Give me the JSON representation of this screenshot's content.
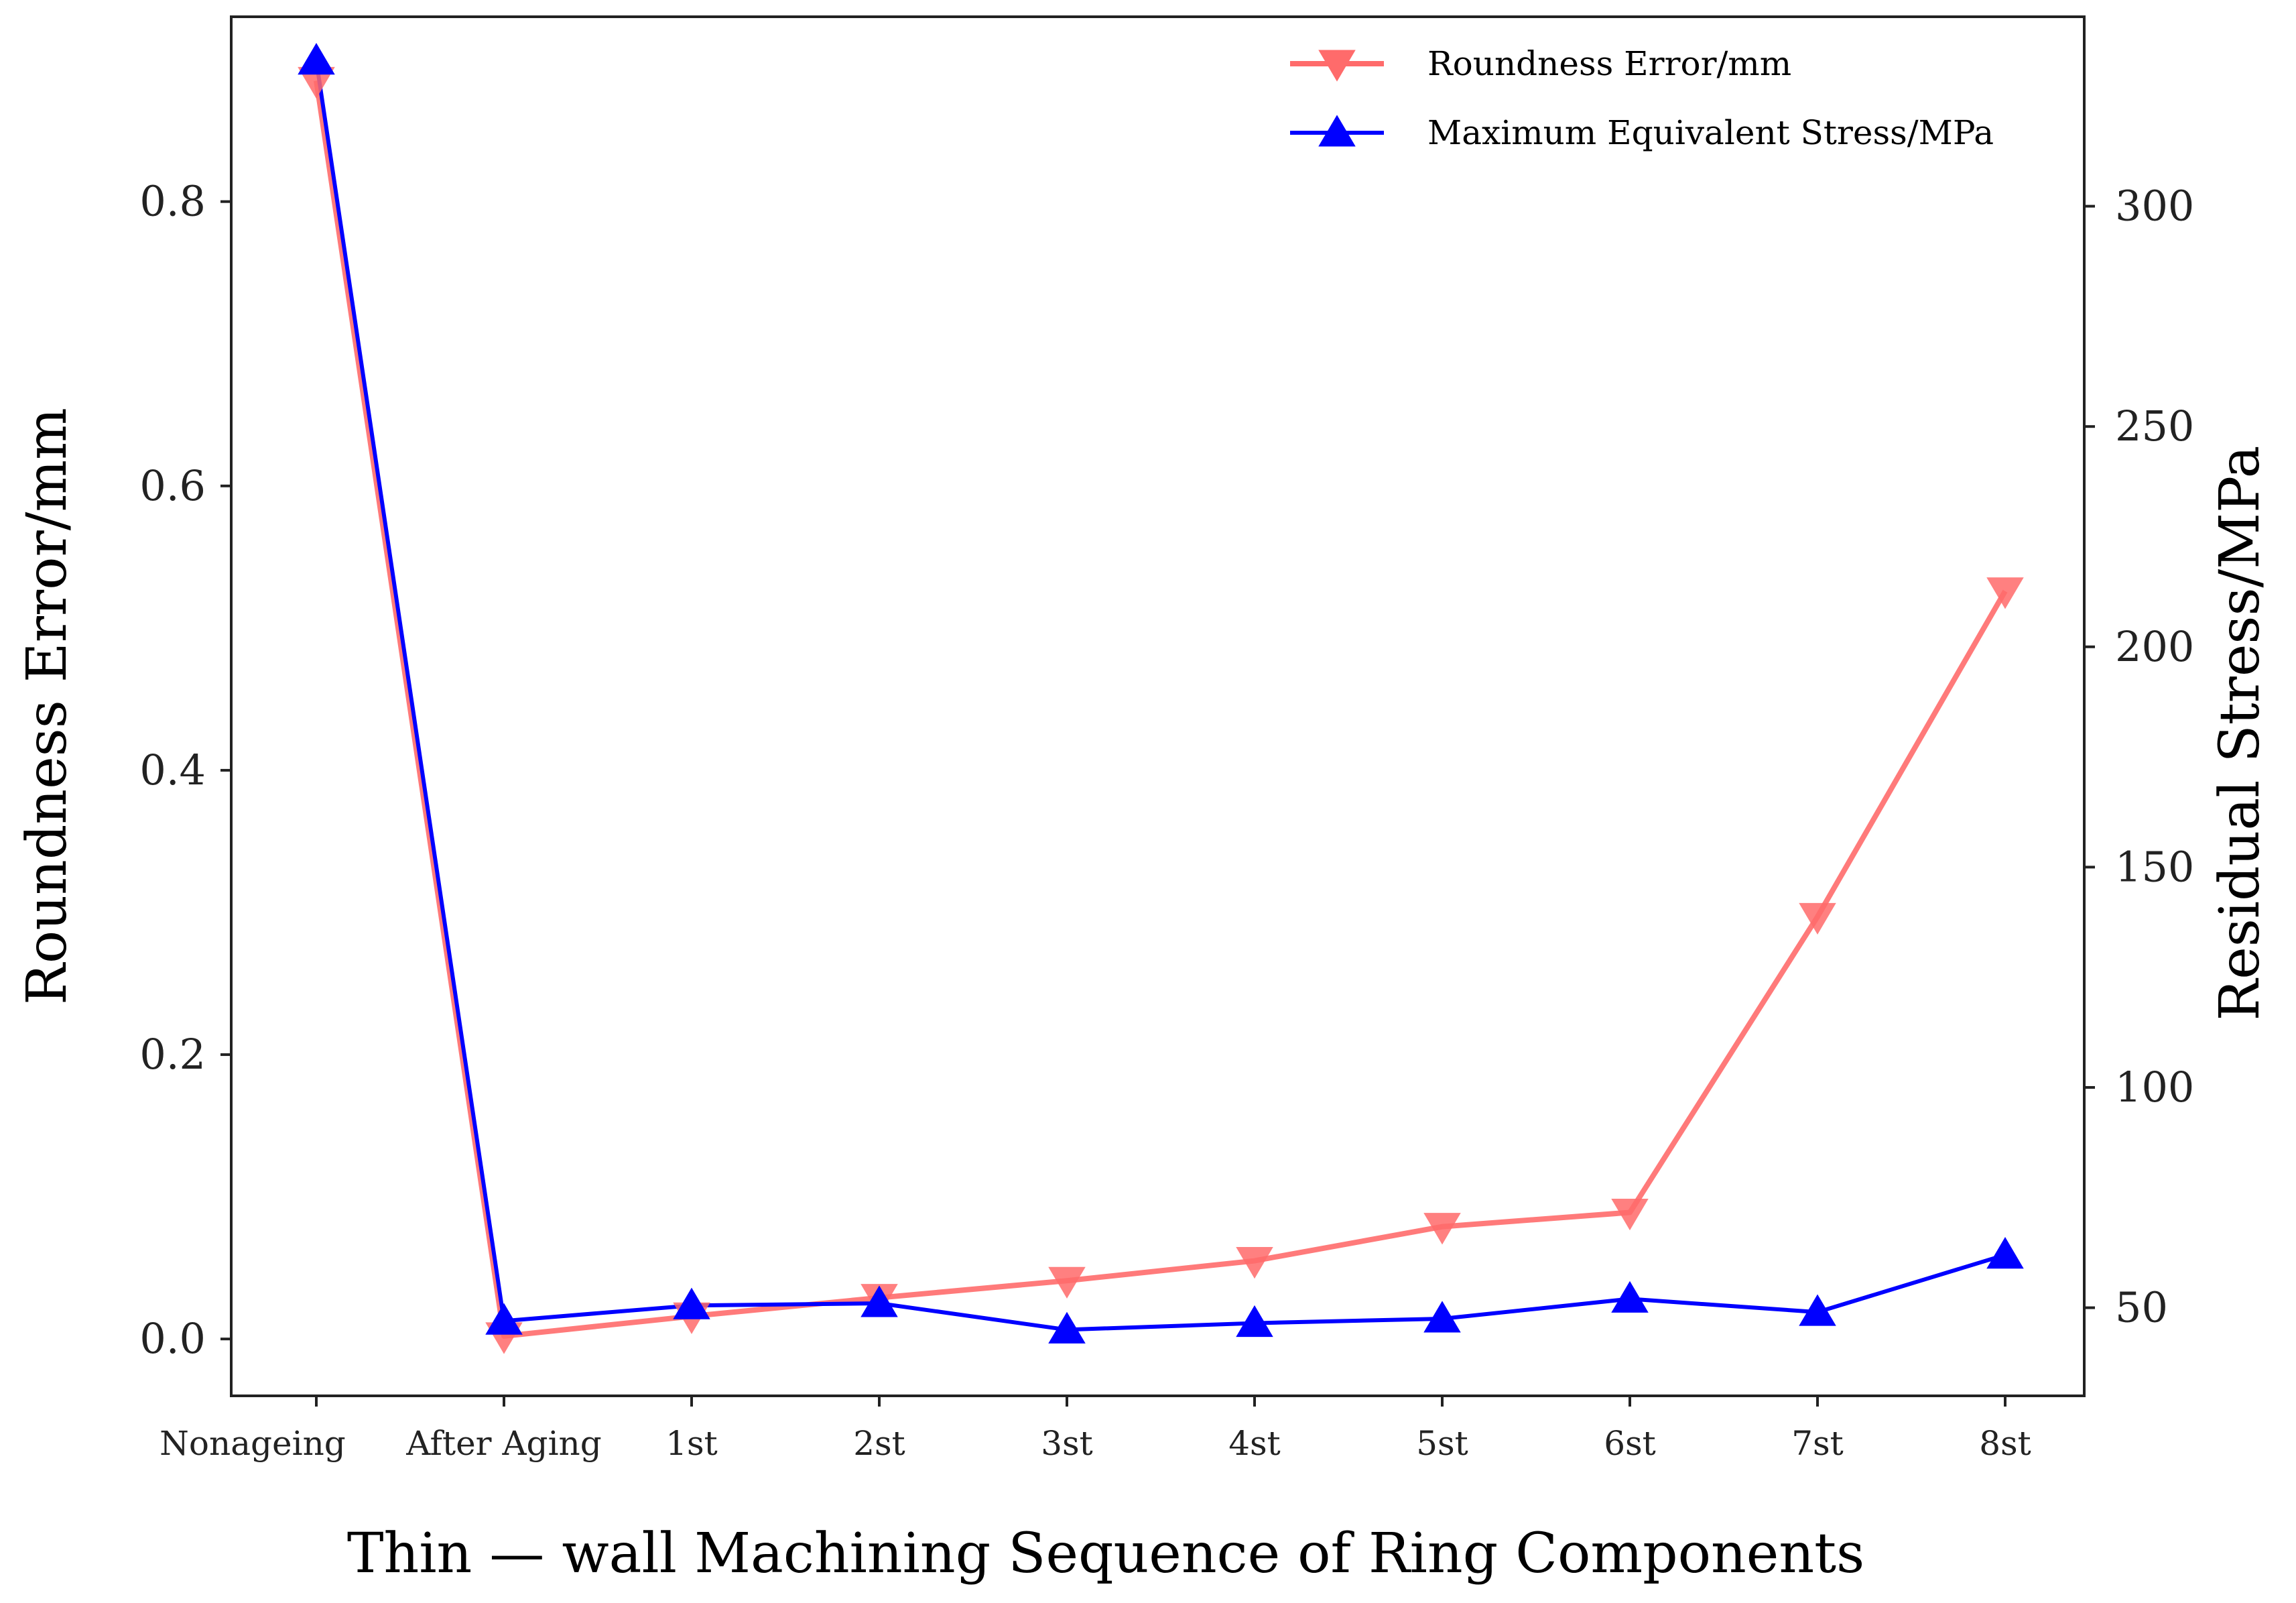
{
  "chart_data": {
    "type": "line",
    "categories": [
      "Nonageing",
      "After Aging",
      "1st",
      "2st",
      "3st",
      "4st",
      "5st",
      "6st",
      "7st",
      "8st"
    ],
    "xlabel": "Thin — wall Machining Sequence of Ring Components",
    "ylabel_left": "Roundness Error/mm",
    "ylabel_right": "Residual Stress/MPa",
    "ylim_left": [
      -0.04,
      0.93
    ],
    "ylim_right": [
      30,
      343
    ],
    "yticks_left": [
      "0.0",
      "0.2",
      "0.4",
      "0.6",
      "0.8"
    ],
    "ytick_values_left": [
      0,
      0.2,
      0.4,
      0.6,
      0.8
    ],
    "yticks_right": [
      "50",
      "100",
      "150",
      "200",
      "250",
      "300"
    ],
    "ytick_values_right": [
      50,
      100,
      150,
      200,
      250,
      300
    ],
    "grid": false,
    "legend_position": "top-right",
    "series": [
      {
        "name": "Roundness Error/mm",
        "axis": "left",
        "color": "#ff6b6b",
        "marker": "triangle-down",
        "values": [
          0.885,
          0.002,
          0.016,
          0.029,
          0.041,
          0.055,
          0.079,
          0.089,
          0.297,
          0.526
        ]
      },
      {
        "name": "Maximum Equivalent Stress/MPa",
        "axis": "right",
        "color": "#0000ff",
        "marker": "triangle-up",
        "values": [
          333,
          47,
          50.5,
          51,
          45,
          46.5,
          47.5,
          52,
          49,
          62
        ]
      }
    ]
  }
}
